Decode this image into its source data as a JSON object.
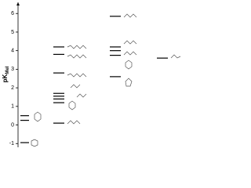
{
  "chart_data": {
    "type": "level",
    "ylabel": "pK",
    "ylabel_sub": "MeI",
    "ylim": [
      -1.2,
      6.6
    ],
    "yticks": [
      -1,
      0,
      1,
      2,
      3,
      4,
      5,
      6
    ],
    "series": [
      {
        "values": [
          0.5,
          0.25,
          -0.95
        ]
      },
      {
        "values": [
          4.2,
          3.8,
          2.8,
          1.7,
          1.55,
          1.4,
          1.2,
          0.1
        ]
      },
      {
        "values": [
          5.85,
          4.2,
          4.0,
          3.75,
          2.6
        ]
      },
      {
        "values": [
          3.6
        ]
      }
    ]
  }
}
